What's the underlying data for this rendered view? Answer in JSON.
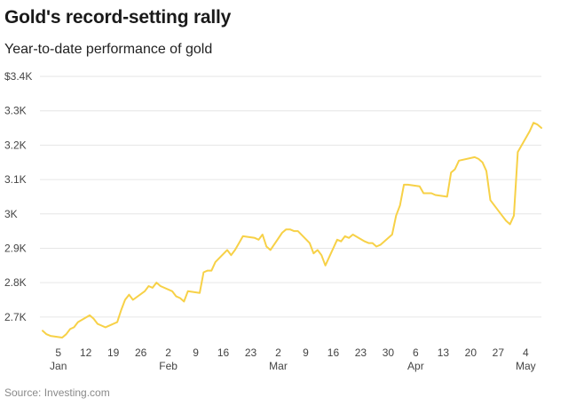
{
  "title": "Gold's record-setting rally",
  "subtitle": "Year-to-date performance of gold",
  "source": "Source: Investing.com",
  "chart_data": {
    "type": "line",
    "title": "Gold's record-setting rally",
    "subtitle": "Year-to-date performance of gold",
    "xlabel": "",
    "ylabel": "",
    "ylim": [
      2600,
      3400
    ],
    "yticks": [
      {
        "value": 2700,
        "label": "2.7K"
      },
      {
        "value": 2800,
        "label": "2.8K"
      },
      {
        "value": 2900,
        "label": "2.9K"
      },
      {
        "value": 3000,
        "label": "3K"
      },
      {
        "value": 3100,
        "label": "3.1K"
      },
      {
        "value": 3200,
        "label": "3.2K"
      },
      {
        "value": 3300,
        "label": "3.3K"
      },
      {
        "value": 3400,
        "label": "$3.4K"
      }
    ],
    "xticks": [
      {
        "date": "2025-01-05",
        "label": "5"
      },
      {
        "date": "2025-01-12",
        "label": "12"
      },
      {
        "date": "2025-01-19",
        "label": "19"
      },
      {
        "date": "2025-01-26",
        "label": "26"
      },
      {
        "date": "2025-02-02",
        "label": "2"
      },
      {
        "date": "2025-02-09",
        "label": "9"
      },
      {
        "date": "2025-02-16",
        "label": "16"
      },
      {
        "date": "2025-02-23",
        "label": "23"
      },
      {
        "date": "2025-03-02",
        "label": "2"
      },
      {
        "date": "2025-03-09",
        "label": "9"
      },
      {
        "date": "2025-03-16",
        "label": "16"
      },
      {
        "date": "2025-03-23",
        "label": "23"
      },
      {
        "date": "2025-03-30",
        "label": "30"
      },
      {
        "date": "2025-04-06",
        "label": "6"
      },
      {
        "date": "2025-04-13",
        "label": "13"
      },
      {
        "date": "2025-04-20",
        "label": "20"
      },
      {
        "date": "2025-04-27",
        "label": "27"
      },
      {
        "date": "2025-05-04",
        "label": "4"
      }
    ],
    "month_labels": [
      {
        "date": "2025-01-05",
        "label": "Jan"
      },
      {
        "date": "2025-02-02",
        "label": "Feb"
      },
      {
        "date": "2025-03-02",
        "label": "Mar"
      },
      {
        "date": "2025-04-06",
        "label": "Apr"
      },
      {
        "date": "2025-05-04",
        "label": "May"
      }
    ],
    "grid": true,
    "line_color": "#F7D147",
    "series": [
      {
        "x": [
          "2025-01-01",
          "2025-01-02",
          "2025-01-03",
          "2025-01-06",
          "2025-01-07",
          "2025-01-08",
          "2025-01-09",
          "2025-01-10",
          "2025-01-13",
          "2025-01-14",
          "2025-01-15",
          "2025-01-16",
          "2025-01-17",
          "2025-01-20",
          "2025-01-21",
          "2025-01-22",
          "2025-01-23",
          "2025-01-24",
          "2025-01-27",
          "2025-01-28",
          "2025-01-29",
          "2025-01-30",
          "2025-01-31",
          "2025-02-03",
          "2025-02-04",
          "2025-02-05",
          "2025-02-06",
          "2025-02-07",
          "2025-02-10",
          "2025-02-11",
          "2025-02-12",
          "2025-02-13",
          "2025-02-14",
          "2025-02-17",
          "2025-02-18",
          "2025-02-19",
          "2025-02-20",
          "2025-02-21",
          "2025-02-24",
          "2025-02-25",
          "2025-02-26",
          "2025-02-27",
          "2025-02-28",
          "2025-03-03",
          "2025-03-04",
          "2025-03-05",
          "2025-03-06",
          "2025-03-07",
          "2025-03-10",
          "2025-03-11",
          "2025-03-12",
          "2025-03-13",
          "2025-03-14",
          "2025-03-17",
          "2025-03-18",
          "2025-03-19",
          "2025-03-20",
          "2025-03-21",
          "2025-03-24",
          "2025-03-25",
          "2025-03-26",
          "2025-03-27",
          "2025-03-28",
          "2025-03-31",
          "2025-04-01",
          "2025-04-02",
          "2025-04-03",
          "2025-04-04",
          "2025-04-07",
          "2025-04-08",
          "2025-04-09",
          "2025-04-10",
          "2025-04-11",
          "2025-04-14",
          "2025-04-15",
          "2025-04-16",
          "2025-04-17",
          "2025-04-21",
          "2025-04-22",
          "2025-04-23",
          "2025-04-24",
          "2025-04-25",
          "2025-04-28",
          "2025-04-29",
          "2025-04-30",
          "2025-05-01",
          "2025-05-02",
          "2025-05-05",
          "2025-05-06",
          "2025-05-07",
          "2025-05-08"
        ],
        "y": [
          2660,
          2650,
          2645,
          2640,
          2650,
          2665,
          2670,
          2685,
          2705,
          2695,
          2680,
          2675,
          2670,
          2685,
          2720,
          2750,
          2765,
          2750,
          2775,
          2790,
          2785,
          2800,
          2790,
          2775,
          2760,
          2755,
          2745,
          2775,
          2770,
          2830,
          2835,
          2835,
          2860,
          2895,
          2880,
          2895,
          2915,
          2935,
          2930,
          2925,
          2940,
          2905,
          2895,
          2945,
          2955,
          2955,
          2950,
          2950,
          2915,
          2885,
          2895,
          2880,
          2850,
          2925,
          2920,
          2935,
          2930,
          2940,
          2920,
          2915,
          2915,
          2905,
          2910,
          2940,
          2995,
          3025,
          3085,
          3085,
          3080,
          3060,
          3060,
          3060,
          3055,
          3050,
          3120,
          3130,
          3155,
          3165,
          3160,
          3150,
          3125,
          3040,
          2995,
          2980,
          2970,
          2995,
          3180,
          3240,
          3265,
          3260,
          3250
        ]
      }
    ]
  }
}
